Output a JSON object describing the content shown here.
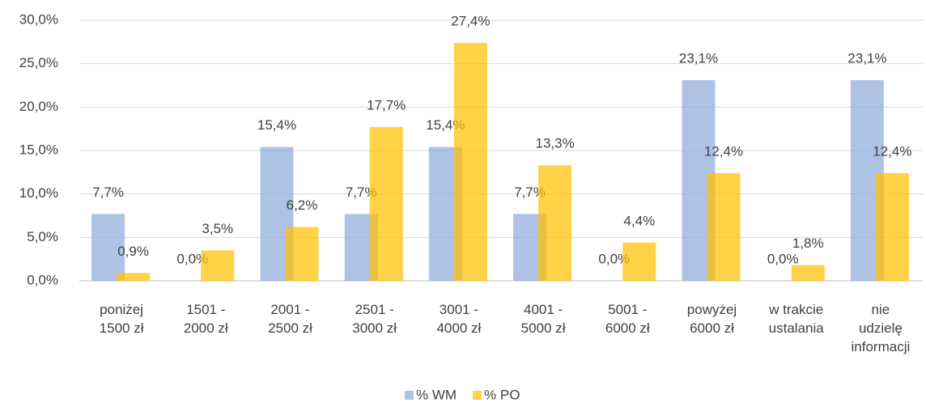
{
  "chart_data": {
    "type": "bar",
    "categories": [
      "poniżej\n1500 zł",
      "1501 -\n2000 zł",
      "2001 -\n2500 zł",
      "2501 -\n3000 zł",
      "3001 -\n4000 zł",
      "4001 -\n5000 zł",
      "5001 -\n6000 zł",
      "powyżej\n6000 zł",
      "w trakcie\nustalania",
      "nie\nudzielę\ninformacji"
    ],
    "series": [
      {
        "name": "% WM",
        "color": "#8faadc",
        "values": [
          7.7,
          0.0,
          15.4,
          7.7,
          15.4,
          7.7,
          0.0,
          23.1,
          0.0,
          23.1
        ],
        "value_labels": [
          "7,7%",
          "0,0%",
          "15,4%",
          "7,7%",
          "15,4%",
          "7,7%",
          "0,0%",
          "23,1%",
          "0,0%",
          "23,1%"
        ]
      },
      {
        "name": "% PO",
        "color": "#ffc000",
        "values": [
          0.9,
          3.5,
          6.2,
          17.7,
          27.4,
          13.3,
          4.4,
          12.4,
          1.8,
          12.4
        ],
        "value_labels": [
          "0,9%",
          "3,5%",
          "6,2%",
          "17,7%",
          "27,4%",
          "13,3%",
          "4,4%",
          "12,4%",
          "1,8%",
          "12,4%"
        ]
      }
    ],
    "ylim": [
      0,
      30
    ],
    "yticks": [
      {
        "value": 0,
        "label": "0,0%"
      },
      {
        "value": 5,
        "label": "5,0%"
      },
      {
        "value": 10,
        "label": "10,0%"
      },
      {
        "value": 15,
        "label": "15,0%"
      },
      {
        "value": 20,
        "label": "20,0%"
      },
      {
        "value": 25,
        "label": "25,0%"
      },
      {
        "value": 30,
        "label": "30,0%"
      }
    ],
    "grid": true,
    "legend": "bottom"
  }
}
